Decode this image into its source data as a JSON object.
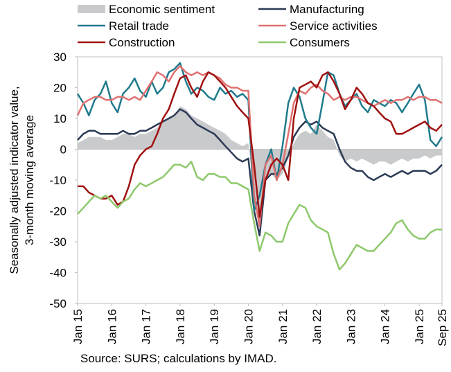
{
  "chart_data": {
    "type": "line",
    "y_label": [
      "Seasonally adjusted indicator value,",
      "3-month moving average"
    ],
    "source": "Source: SURS; calculations by IMAD.",
    "xlim": [
      2015,
      2025.67
    ],
    "xticks": [
      {
        "value": 2015,
        "label": "Jan 15"
      },
      {
        "value": 2016,
        "label": "Jan 16"
      },
      {
        "value": 2017,
        "label": "Jan 17"
      },
      {
        "value": 2018,
        "label": "Jan 18"
      },
      {
        "value": 2019,
        "label": "Jan 19"
      },
      {
        "value": 2020,
        "label": "Jan 20"
      },
      {
        "value": 2021,
        "label": "Jan 21"
      },
      {
        "value": 2022,
        "label": "Jan 22"
      },
      {
        "value": 2023,
        "label": "Jan 23"
      },
      {
        "value": 2024,
        "label": "Jan 24"
      },
      {
        "value": 2025,
        "label": "Jan 25"
      },
      {
        "value": 2025.67,
        "label": "Sep 25"
      }
    ],
    "ylim": [
      -50,
      30
    ],
    "yticks": [
      30,
      20,
      10,
      0,
      -10,
      -20,
      -30,
      -40,
      -50
    ],
    "x": [
      2015,
      2015.17,
      2015.33,
      2015.5,
      2015.67,
      2015.83,
      2016,
      2016.17,
      2016.33,
      2016.5,
      2016.67,
      2016.83,
      2017,
      2017.17,
      2017.33,
      2017.5,
      2017.67,
      2017.83,
      2018,
      2018.17,
      2018.33,
      2018.5,
      2018.67,
      2018.83,
      2019,
      2019.17,
      2019.33,
      2019.5,
      2019.67,
      2019.83,
      2020,
      2020.17,
      2020.33,
      2020.5,
      2020.67,
      2020.83,
      2021,
      2021.17,
      2021.33,
      2021.5,
      2021.67,
      2021.83,
      2022,
      2022.17,
      2022.33,
      2022.5,
      2022.67,
      2022.83,
      2023,
      2023.17,
      2023.33,
      2023.5,
      2023.67,
      2023.83,
      2024,
      2024.17,
      2024.33,
      2024.5,
      2024.67,
      2024.83,
      2025,
      2025.17,
      2025.33,
      2025.5,
      2025.67
    ],
    "series": [
      {
        "name": "Economic sentiment",
        "style": "area",
        "color": "#c9cacc",
        "values": [
          2,
          3,
          4,
          4,
          4,
          3,
          3,
          4,
          5,
          5,
          4,
          5,
          5,
          6,
          7,
          9,
          10,
          11,
          14,
          13,
          11,
          10,
          9,
          8,
          7,
          6,
          5,
          3,
          2,
          1,
          2,
          -15,
          -25,
          -10,
          -8,
          -10,
          -8,
          -3,
          2,
          5,
          6,
          5,
          8,
          6,
          4,
          3,
          -2,
          -4,
          -3,
          -4,
          -3,
          -4,
          -5,
          -4,
          -4,
          -5,
          -4,
          -3,
          -4,
          -3,
          -3,
          -2,
          -3,
          -2,
          -2
        ]
      },
      {
        "name": "Manufacturing",
        "style": "line",
        "color": "#2b3a55",
        "values": [
          3,
          5,
          6,
          6,
          5,
          5,
          5,
          5,
          6,
          5,
          5,
          6,
          6,
          7,
          8,
          9,
          10,
          11,
          13,
          12,
          10,
          8,
          7,
          6,
          5,
          3,
          1,
          -1,
          -3,
          -4,
          -3,
          -20,
          -28,
          -10,
          -8,
          -8,
          -6,
          -2,
          4,
          7,
          9,
          8,
          9,
          7,
          6,
          5,
          0,
          -4,
          -6,
          -7,
          -7,
          -9,
          -10,
          -9,
          -8,
          -9,
          -8,
          -7,
          -8,
          -7,
          -7,
          -7,
          -8,
          -7,
          -5
        ]
      },
      {
        "name": "Retail trade",
        "style": "line",
        "color": "#1f7a8c",
        "values": [
          18,
          15,
          11,
          16,
          18,
          22,
          15,
          12,
          18,
          20,
          23,
          19,
          17,
          22,
          18,
          20,
          25,
          26,
          28,
          22,
          18,
          20,
          19,
          17,
          16,
          20,
          18,
          19,
          17,
          18,
          16,
          -20,
          -15,
          -5,
          0,
          -10,
          1,
          15,
          20,
          17,
          10,
          7,
          5,
          15,
          25,
          24,
          18,
          14,
          16,
          18,
          14,
          12,
          16,
          15,
          14,
          16,
          15,
          12,
          15,
          18,
          21,
          16,
          3,
          1,
          4
        ]
      },
      {
        "name": "Service activities",
        "style": "line",
        "color": "#e07070",
        "values": [
          11,
          15,
          16,
          17,
          17,
          16,
          16,
          17,
          17,
          16,
          17,
          16,
          19,
          22,
          25,
          24,
          22,
          25,
          27,
          25,
          24,
          25,
          24,
          25,
          24,
          23,
          21,
          20,
          20,
          19,
          19,
          -15,
          -25,
          -5,
          -2,
          -10,
          -5,
          5,
          15,
          19,
          18,
          20,
          21,
          19,
          18,
          16,
          17,
          16,
          17,
          17,
          16,
          15,
          14,
          15,
          16,
          15,
          16,
          16,
          17,
          16,
          17,
          17,
          16,
          16,
          15
        ]
      },
      {
        "name": "Construction",
        "style": "line",
        "color": "#a01010",
        "values": [
          -12,
          -12,
          -14,
          -15,
          -16,
          -16,
          -15,
          -18,
          -17,
          -12,
          -5,
          -2,
          0,
          1,
          5,
          10,
          13,
          18,
          23,
          24,
          20,
          17,
          22,
          25,
          24,
          22,
          20,
          17,
          14,
          12,
          10,
          -5,
          -22,
          -10,
          -5,
          -3,
          -5,
          -10,
          10,
          20,
          21,
          22,
          20,
          24,
          25,
          22,
          18,
          13,
          16,
          20,
          18,
          15,
          14,
          12,
          10,
          9,
          5,
          5,
          6,
          7,
          8,
          9,
          7,
          6,
          8
        ]
      },
      {
        "name": "Consumers",
        "style": "line",
        "color": "#8dc86b",
        "values": [
          -21,
          -19,
          -17,
          -15,
          -16,
          -15,
          -17,
          -19,
          -17,
          -16,
          -13,
          -11,
          -12,
          -11,
          -10,
          -9,
          -7,
          -5,
          -5,
          -6,
          -4,
          -9,
          -10,
          -8,
          -8,
          -9,
          -9,
          -11,
          -11,
          -12,
          -13,
          -24,
          -33,
          -27,
          -28,
          -30,
          -30,
          -24,
          -21,
          -18,
          -19,
          -23,
          -25,
          -26,
          -27,
          -34,
          -39,
          -37,
          -34,
          -31,
          -32,
          -33,
          -33,
          -31,
          -29,
          -27,
          -24,
          -23,
          -26,
          -28,
          -29,
          -29,
          -27,
          -26,
          -26
        ]
      }
    ]
  }
}
